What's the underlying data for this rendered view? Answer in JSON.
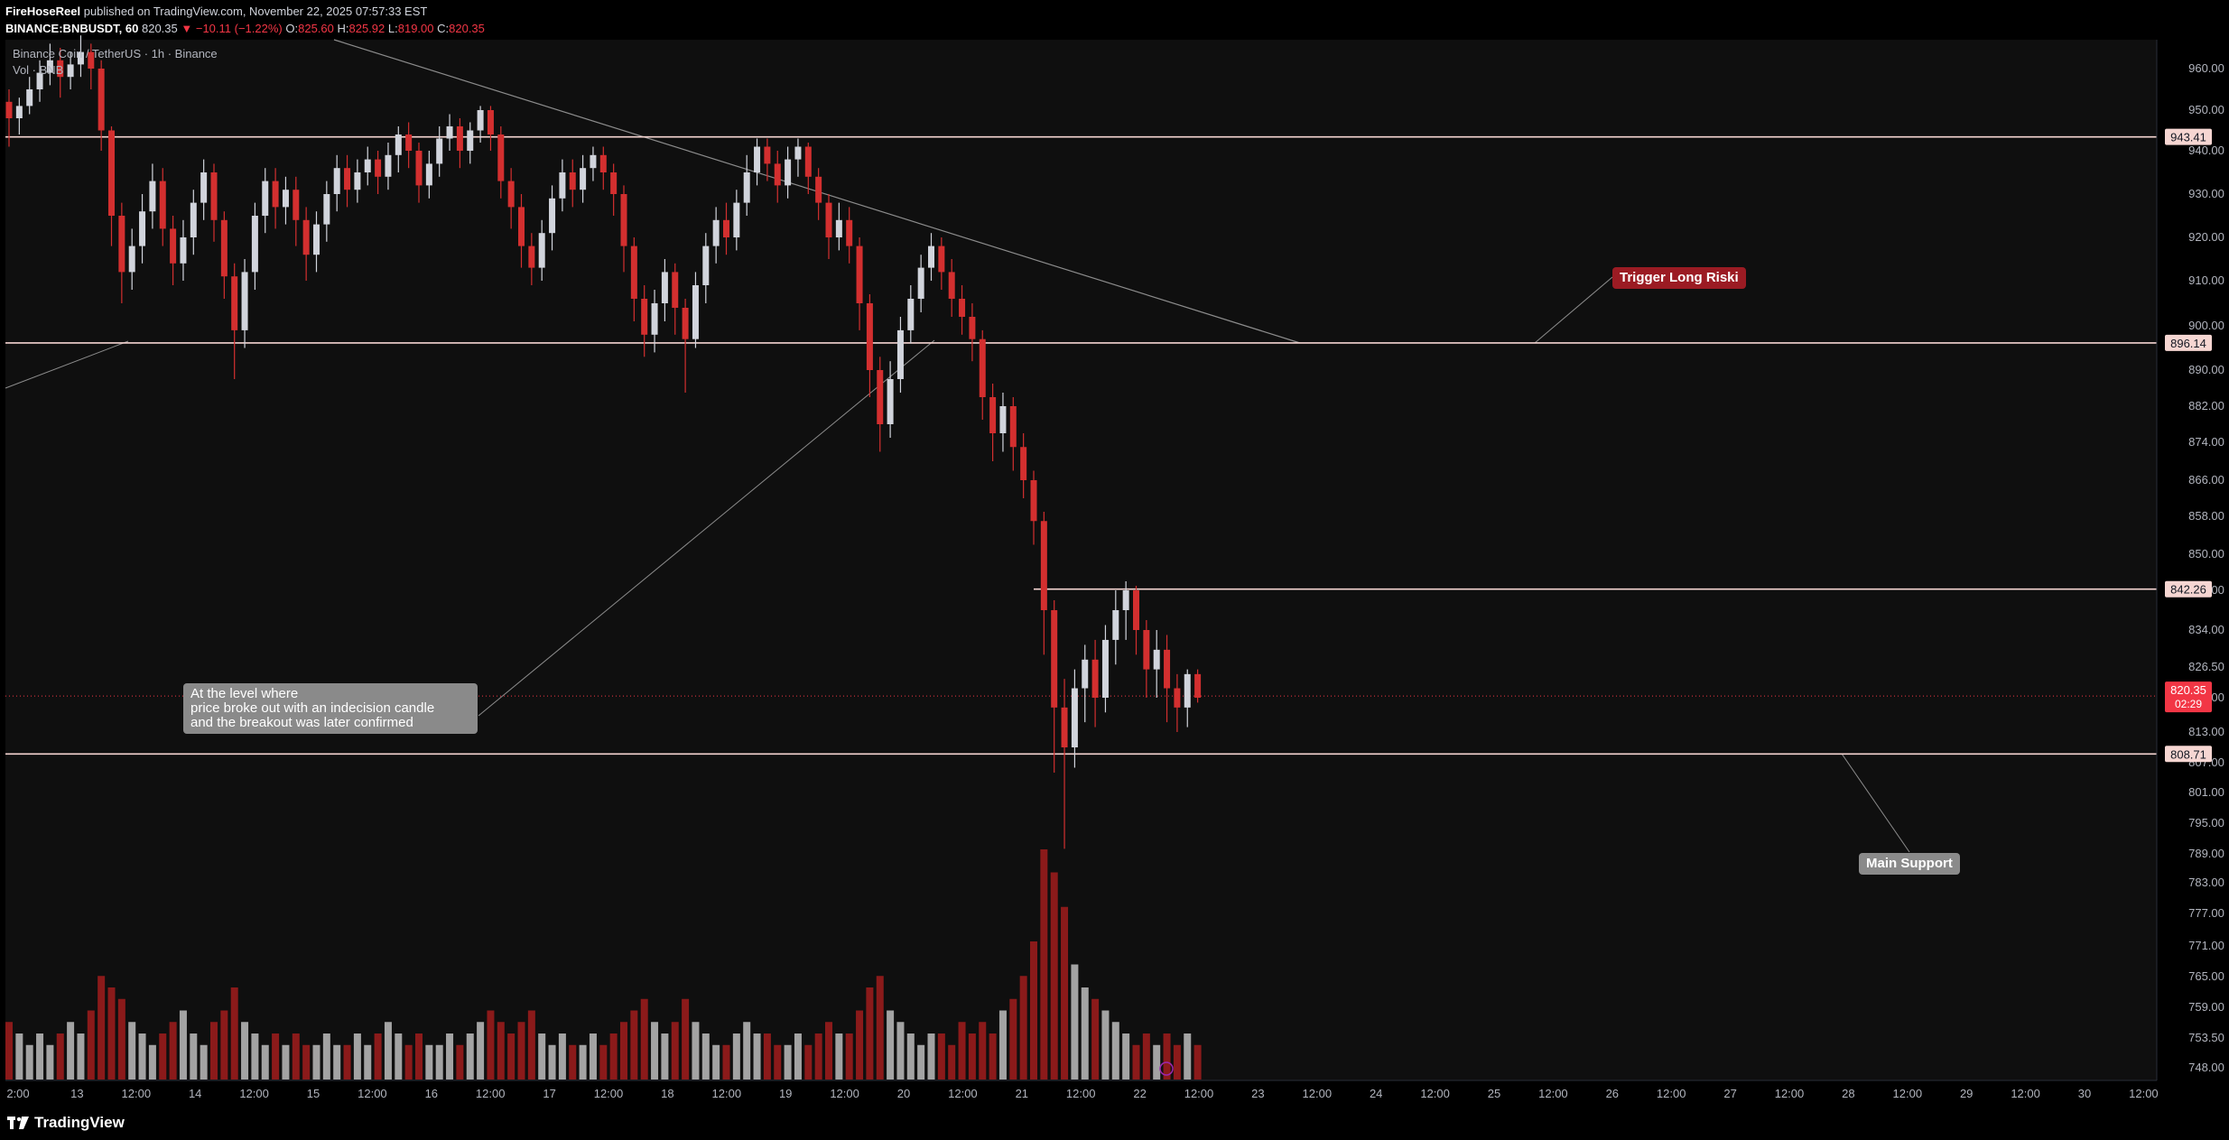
{
  "header": {
    "publisher": "FireHoseReel",
    "published_text": "published on TradingView.com, November 22, 2025 07:57:33 EST",
    "symbol": "BINANCE:BNBUSDT, 60",
    "last": "820.35",
    "change": "▼ −10.11 (−1.22%)",
    "ohlc_o_label": "O:",
    "ohlc_o": "825.60",
    "ohlc_h_label": "H:",
    "ohlc_h": "825.92",
    "ohlc_l_label": "L:",
    "ohlc_l": "819.00",
    "ohlc_c_label": "C:",
    "ohlc_c": "820.35"
  },
  "legend": {
    "title": "Binance Coin / TetherUS · 1h · Binance",
    "vol": "Vol · BNB"
  },
  "annotations": {
    "indecision_line1": "At the level where",
    "indecision_line2": "price broke out with an indecision candle",
    "indecision_line3": "and the breakout was later confirmed",
    "trigger": "Trigger Long Riski",
    "support": "Main Support"
  },
  "footer": {
    "brand": "TradingView"
  },
  "colors": {
    "up": "#d1d4dc",
    "down": "#d32f2f",
    "level_line": "#f6d6d2",
    "price_badge": "#f23645",
    "vol_up": "#a3a3a3",
    "vol_down": "#8b1a1a"
  },
  "chart_data": {
    "type": "candlestick",
    "title": "Binance Coin / TetherUS · 1h · Binance",
    "y_ticks": [
      "960.00",
      "950.00",
      "940.00",
      "930.00",
      "920.00",
      "910.00",
      "900.00",
      "890.00",
      "882.00",
      "874.00",
      "866.00",
      "858.00",
      "850.00",
      "842.00",
      "834.00",
      "826.50",
      "820.00",
      "813.00",
      "807.00",
      "801.00",
      "795.00",
      "789.00",
      "783.00",
      "777.00",
      "771.00",
      "765.00",
      "759.00",
      "753.50",
      "748.00"
    ],
    "x_ticks": [
      "2:00",
      "13",
      "12:00",
      "14",
      "12:00",
      "15",
      "12:00",
      "16",
      "12:00",
      "17",
      "12:00",
      "18",
      "12:00",
      "19",
      "12:00",
      "20",
      "12:00",
      "21",
      "12:00",
      "22",
      "12:00",
      "23",
      "12:00",
      "24",
      "12:00",
      "25",
      "12:00",
      "26",
      "12:00",
      "27",
      "12:00",
      "28",
      "12:00",
      "29",
      "12:00",
      "30",
      "12:00"
    ],
    "levels": [
      {
        "label": "943.41",
        "value": 943.41
      },
      {
        "label": "896.14",
        "value": 896.14
      },
      {
        "label": "842.26",
        "value": 842.26
      },
      {
        "label": "808.71",
        "value": 808.71
      }
    ],
    "current_price": {
      "label": "820.35",
      "countdown": "02:29",
      "value": 820.35
    },
    "candles_hourly": [
      [
        952,
        948,
        955,
        941
      ],
      [
        948,
        951,
        953,
        944
      ],
      [
        951,
        955,
        958,
        949
      ],
      [
        955,
        959,
        962,
        952
      ],
      [
        959,
        962,
        966,
        956
      ],
      [
        962,
        958,
        965,
        953
      ],
      [
        958,
        961,
        964,
        955
      ],
      [
        961,
        964,
        968,
        958
      ],
      [
        964,
        960,
        966,
        955
      ],
      [
        960,
        945,
        962,
        940
      ],
      [
        945,
        925,
        946,
        918
      ],
      [
        925,
        912,
        928,
        905
      ],
      [
        912,
        918,
        922,
        908
      ],
      [
        918,
        926,
        930,
        914
      ],
      [
        926,
        933,
        937,
        922
      ],
      [
        933,
        922,
        936,
        918
      ],
      [
        922,
        914,
        925,
        909
      ],
      [
        914,
        920,
        924,
        910
      ],
      [
        920,
        928,
        931,
        916
      ],
      [
        928,
        935,
        938,
        924
      ],
      [
        935,
        924,
        937,
        919
      ],
      [
        924,
        911,
        926,
        906
      ],
      [
        911,
        899,
        914,
        888
      ],
      [
        899,
        912,
        915,
        895
      ],
      [
        912,
        925,
        928,
        908
      ],
      [
        925,
        933,
        936,
        921
      ],
      [
        933,
        927,
        936,
        922
      ],
      [
        927,
        931,
        934,
        923
      ],
      [
        931,
        924,
        934,
        918
      ],
      [
        924,
        916,
        927,
        910
      ],
      [
        916,
        923,
        926,
        912
      ],
      [
        923,
        930,
        933,
        919
      ],
      [
        930,
        936,
        939,
        926
      ],
      [
        936,
        931,
        939,
        927
      ],
      [
        931,
        935,
        938,
        928
      ],
      [
        935,
        938,
        941,
        932
      ],
      [
        938,
        934,
        940,
        930
      ],
      [
        934,
        939,
        942,
        931
      ],
      [
        939,
        944,
        946,
        935
      ],
      [
        944,
        940,
        947,
        936
      ],
      [
        940,
        932,
        942,
        928
      ],
      [
        932,
        937,
        940,
        929
      ],
      [
        937,
        943,
        946,
        934
      ],
      [
        943,
        946,
        949,
        940
      ],
      [
        946,
        940,
        948,
        936
      ],
      [
        940,
        945,
        947,
        937
      ],
      [
        945,
        950,
        951,
        942
      ],
      [
        950,
        944,
        951,
        940
      ],
      [
        944,
        933,
        946,
        929
      ],
      [
        933,
        927,
        936,
        922
      ],
      [
        927,
        918,
        930,
        913
      ],
      [
        918,
        913,
        921,
        909
      ],
      [
        913,
        921,
        924,
        910
      ],
      [
        921,
        929,
        932,
        917
      ],
      [
        929,
        935,
        938,
        926
      ],
      [
        935,
        931,
        938,
        927
      ],
      [
        931,
        936,
        939,
        928
      ],
      [
        936,
        939,
        941,
        933
      ],
      [
        939,
        935,
        941,
        931
      ],
      [
        935,
        930,
        937,
        925
      ],
      [
        930,
        918,
        932,
        912
      ],
      [
        918,
        906,
        920,
        901
      ],
      [
        906,
        898,
        909,
        893
      ],
      [
        898,
        905,
        908,
        894
      ],
      [
        905,
        912,
        915,
        901
      ],
      [
        912,
        904,
        914,
        898
      ],
      [
        904,
        897,
        906,
        885
      ],
      [
        897,
        909,
        912,
        895
      ],
      [
        909,
        918,
        921,
        905
      ],
      [
        918,
        924,
        927,
        914
      ],
      [
        924,
        920,
        928,
        916
      ],
      [
        920,
        928,
        931,
        917
      ],
      [
        928,
        935,
        939,
        925
      ],
      [
        935,
        941,
        943,
        932
      ],
      [
        941,
        937,
        943,
        933
      ],
      [
        937,
        932,
        940,
        928
      ],
      [
        932,
        938,
        941,
        929
      ],
      [
        938,
        941,
        943,
        934
      ],
      [
        941,
        934,
        942,
        930
      ],
      [
        934,
        928,
        936,
        924
      ],
      [
        928,
        920,
        930,
        915
      ],
      [
        920,
        924,
        928,
        917
      ],
      [
        924,
        918,
        927,
        914
      ],
      [
        918,
        905,
        920,
        899
      ],
      [
        905,
        890,
        907,
        884
      ],
      [
        890,
        878,
        893,
        872
      ],
      [
        878,
        888,
        892,
        875
      ],
      [
        888,
        899,
        902,
        885
      ],
      [
        899,
        906,
        909,
        896
      ],
      [
        906,
        913,
        916,
        903
      ],
      [
        913,
        918,
        921,
        910
      ],
      [
        918,
        912,
        920,
        908
      ],
      [
        912,
        906,
        915,
        902
      ],
      [
        906,
        902,
        909,
        898
      ],
      [
        902,
        897,
        905,
        892
      ],
      [
        897,
        884,
        899,
        879
      ],
      [
        884,
        876,
        887,
        870
      ],
      [
        876,
        882,
        885,
        872
      ],
      [
        882,
        873,
        884,
        868
      ],
      [
        873,
        866,
        876,
        862
      ],
      [
        866,
        857,
        868,
        852
      ],
      [
        857,
        838,
        859,
        829
      ],
      [
        838,
        818,
        840,
        805
      ],
      [
        818,
        810,
        824,
        790
      ],
      [
        810,
        822,
        826,
        806
      ],
      [
        822,
        828,
        831,
        815
      ],
      [
        828,
        820,
        832,
        814
      ],
      [
        820,
        832,
        835,
        817
      ],
      [
        832,
        838,
        842,
        827
      ],
      [
        838,
        842,
        844,
        832
      ],
      [
        842,
        834,
        843,
        829
      ],
      [
        834,
        826,
        836,
        820
      ],
      [
        826,
        830,
        834,
        820
      ],
      [
        830,
        822,
        833,
        815
      ],
      [
        822,
        818,
        825,
        813
      ],
      [
        818,
        825,
        826,
        814
      ],
      [
        825,
        820,
        826,
        819
      ]
    ],
    "volume_hourly": [
      5,
      4,
      3,
      4,
      3,
      4,
      5,
      4,
      6,
      9,
      8,
      7,
      5,
      4,
      3,
      4,
      5,
      6,
      4,
      3,
      5,
      6,
      8,
      5,
      4,
      3,
      4,
      3,
      4,
      3,
      3,
      4,
      3,
      3,
      4,
      3,
      4,
      5,
      4,
      3,
      4,
      3,
      3,
      4,
      3,
      4,
      5,
      6,
      5,
      4,
      5,
      6,
      4,
      3,
      4,
      3,
      3,
      4,
      3,
      4,
      5,
      6,
      7,
      5,
      4,
      5,
      7,
      5,
      4,
      3,
      3,
      4,
      5,
      4,
      4,
      3,
      3,
      4,
      3,
      4,
      5,
      4,
      4,
      6,
      8,
      9,
      6,
      5,
      4,
      3,
      4,
      4,
      3,
      5,
      4,
      5,
      4,
      6,
      7,
      9,
      12,
      20,
      18,
      15,
      10,
      8,
      7,
      6,
      5,
      4,
      3,
      4,
      3,
      4,
      3,
      4,
      3
    ]
  }
}
